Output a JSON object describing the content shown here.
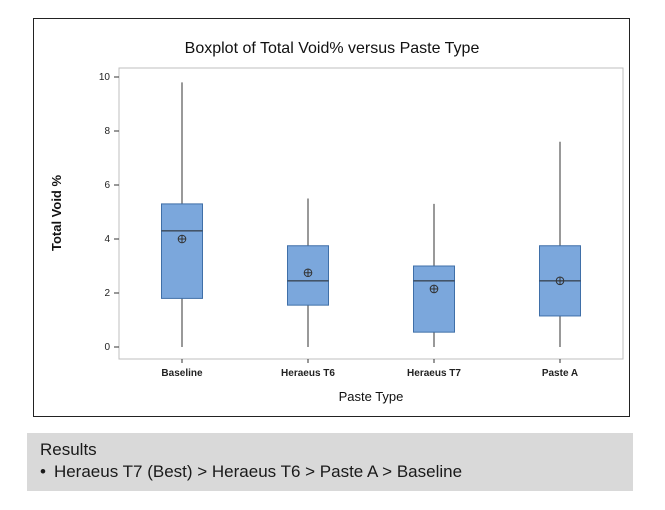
{
  "chart_data": {
    "type": "boxplot",
    "title": "Boxplot of Total Void% versus Paste Type",
    "xlabel": "Paste Type",
    "ylabel": "Total Void %",
    "ylim": [
      0,
      10
    ],
    "yticks": [
      0,
      2,
      4,
      6,
      8,
      10
    ],
    "categories": [
      "Baseline",
      "Heraeus T6",
      "Heraeus T7",
      "Paste A"
    ],
    "boxes": [
      {
        "name": "Baseline",
        "min": 0.0,
        "q1": 1.8,
        "median": 4.3,
        "q3": 5.3,
        "max": 9.8,
        "mean": 4.0
      },
      {
        "name": "Heraeus T6",
        "min": 0.0,
        "q1": 1.55,
        "median": 2.45,
        "q3": 3.75,
        "max": 5.5,
        "mean": 2.75
      },
      {
        "name": "Heraeus T7",
        "min": 0.0,
        "q1": 0.55,
        "median": 2.45,
        "q3": 3.0,
        "max": 5.3,
        "mean": 2.15
      },
      {
        "name": "Paste A",
        "min": 0.0,
        "q1": 1.15,
        "median": 2.45,
        "q3": 3.75,
        "max": 7.6,
        "mean": 2.45
      }
    ],
    "colors": {
      "box_fill": "#7ba7dc",
      "box_stroke": "#3f6fa8",
      "line": "#333333",
      "frame": "#bfbfbf"
    }
  },
  "results": {
    "title": "Results",
    "bullet": "•",
    "text": "Heraeus T7 (Best) > Heraeus T6 > Paste A > Baseline"
  }
}
